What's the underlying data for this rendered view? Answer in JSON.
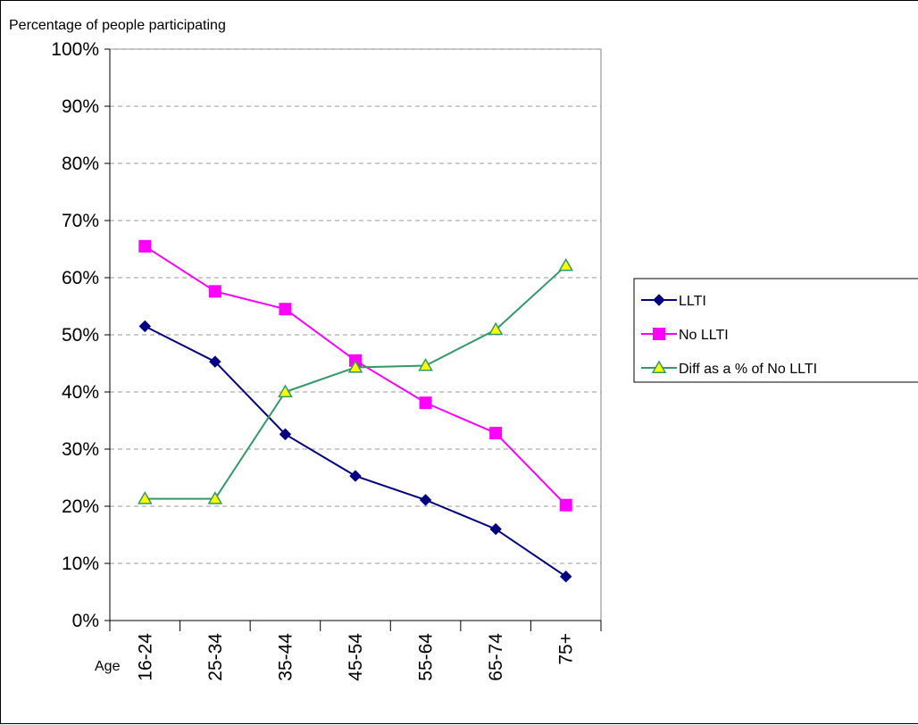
{
  "chart_data": {
    "type": "line",
    "ylabel": "Percentage of people participating",
    "xlabel": "Age",
    "categories": [
      "16-24",
      "25-34",
      "35-44",
      "45-54",
      "55-64",
      "65-74",
      "75+"
    ],
    "yticks": [
      "0%",
      "10%",
      "20%",
      "30%",
      "40%",
      "50%",
      "60%",
      "70%",
      "80%",
      "90%",
      "100%"
    ],
    "ylim": [
      0,
      100
    ],
    "grid": "horizontal dashed",
    "legend_position": "right",
    "series": [
      {
        "name": "LLTI",
        "values": [
          51.5,
          45.3,
          32.6,
          25.3,
          21.1,
          16.0,
          7.7
        ],
        "color": "#000080",
        "marker": "diamond"
      },
      {
        "name": "No LLTI",
        "values": [
          65.5,
          57.6,
          54.5,
          45.5,
          38.1,
          32.8,
          20.2
        ],
        "color": "#ff00ff",
        "marker": "square"
      },
      {
        "name": "Diff as a % of No LLTI",
        "values": [
          21.3,
          21.3,
          40.0,
          44.3,
          44.6,
          50.9,
          62.1
        ],
        "color": "#339966",
        "marker": "triangle",
        "marker_fill": "#ffff00"
      }
    ]
  }
}
